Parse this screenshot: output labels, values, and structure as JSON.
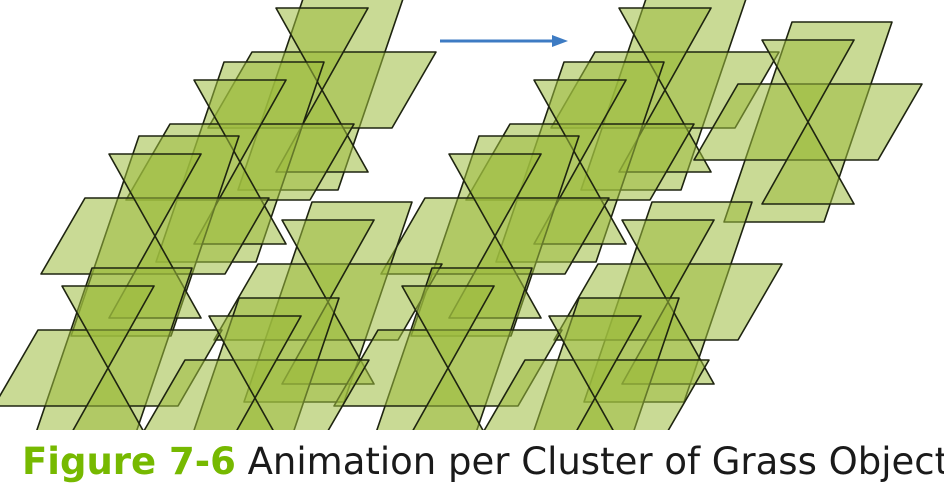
{
  "figure": {
    "label": "Figure 7-6",
    "title": "Animation per Cluster of Grass Objects"
  },
  "colors": {
    "blade_fill": "#9dbb3e",
    "blade_stroke": "#1e2410",
    "arrow": "#3d7bc3",
    "label": "#76b900"
  },
  "icons": {
    "direction_arrow": "right-arrow-icon"
  }
}
